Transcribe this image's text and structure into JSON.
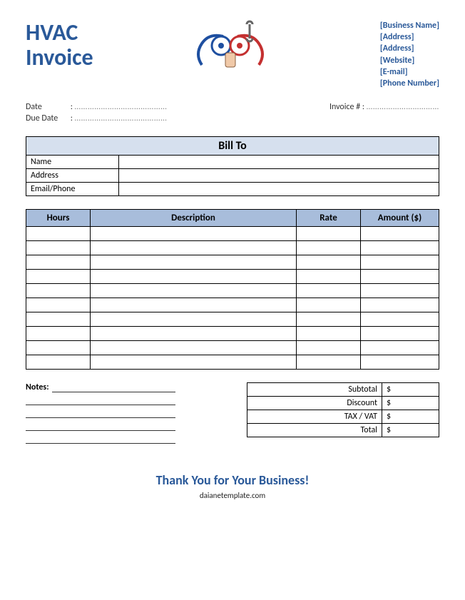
{
  "title": {
    "line1": "HVAC",
    "line2": "Invoice"
  },
  "colors": {
    "brand": "#2a5999",
    "header_light": "#d6e0ee",
    "header_dark": "#a8bddb",
    "border": "#000000",
    "background": "#ffffff"
  },
  "business": {
    "name": "[Business Name]",
    "address1": "[Address]",
    "address2": "[Address]",
    "website": "[Website]",
    "email": "[E-mail]",
    "phone": "[Phone Number]"
  },
  "meta": {
    "date_label": "Date",
    "due_label": "Due Date",
    "date_value": "……………………………………",
    "due_value": "……………………………………",
    "invoice_label": "Invoice # :",
    "invoice_value": "……………………………"
  },
  "bill_to": {
    "header": "Bill To",
    "rows": [
      {
        "label": "Name",
        "value": ""
      },
      {
        "label": "Address",
        "value": ""
      },
      {
        "label": "Email/Phone",
        "value": ""
      }
    ]
  },
  "items_table": {
    "columns": [
      "Hours",
      "Description",
      "Rate",
      "Amount ($)"
    ],
    "row_count": 10
  },
  "notes": {
    "label": "Notes:",
    "line_count": 5
  },
  "totals": {
    "rows": [
      {
        "label": "Subtotal",
        "value": "$"
      },
      {
        "label": "Discount",
        "value": "$"
      },
      {
        "label": "TAX / VAT",
        "value": "$"
      },
      {
        "label": "Total",
        "value": "$"
      }
    ]
  },
  "footer": {
    "thanks": "Thank You for Your Business!",
    "site": "daianetemplate.com"
  }
}
